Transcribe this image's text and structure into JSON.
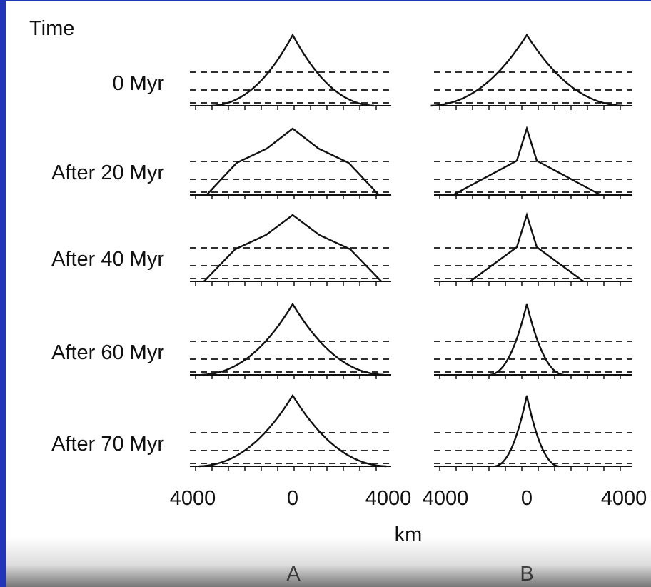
{
  "heading": "Time",
  "rows": [
    {
      "label": "0 Myr",
      "A_half_width_km": 3300,
      "B_half_width_km": 3900,
      "A_hump": null,
      "B_hump": null
    },
    {
      "label": "After 20 Myr",
      "A_half_width_km": 3500,
      "B_half_width_km": 3000,
      "A_hump": "shoulder",
      "B_hump": "narrow"
    },
    {
      "label": "After 40 Myr",
      "A_half_width_km": 3600,
      "B_half_width_km": 2300,
      "A_hump": "shoulder",
      "B_hump": "narrow"
    },
    {
      "label": "After 60 Myr",
      "A_half_width_km": 3700,
      "B_half_width_km": 1500,
      "A_hump": null,
      "B_hump": null
    },
    {
      "label": "After 70 Myr",
      "A_half_width_km": 3800,
      "B_half_width_km": 1300,
      "A_hump": null,
      "B_hump": null
    }
  ],
  "axis": {
    "A_ticks": [
      "4000",
      "0",
      "4000"
    ],
    "B_ticks": [
      "4000",
      "0",
      "4000"
    ],
    "unit": "km",
    "panel_labels": [
      "A",
      "B"
    ]
  },
  "colors": {
    "background": "#ffffff",
    "ink": "#111111",
    "border": "#2234b8"
  }
}
